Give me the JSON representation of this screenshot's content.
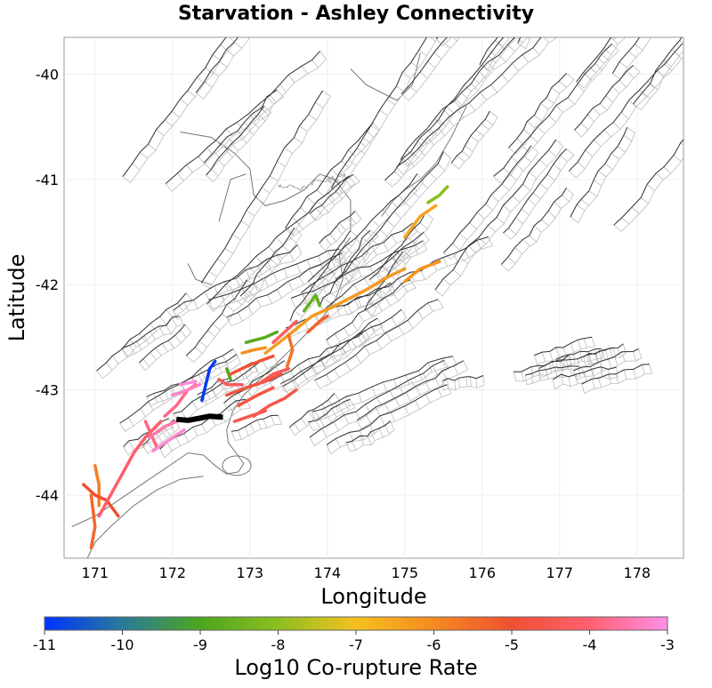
{
  "title": "Starvation - Ashley Connectivity",
  "x_axis": {
    "label": "Longitude",
    "range": [
      170.6,
      178.6
    ],
    "ticks": [
      "171",
      "172",
      "173",
      "174",
      "175",
      "176",
      "177",
      "178"
    ]
  },
  "y_axis": {
    "label": "Latitude",
    "range": [
      -44.6,
      -39.65
    ],
    "ticks": [
      "-40",
      "-41",
      "-42",
      "-43",
      "-44"
    ]
  },
  "colorbar": {
    "label": "Log10 Co-rupture Rate",
    "range": [
      -11,
      -3
    ],
    "ticks": [
      "-11",
      "-10",
      "-9",
      "-8",
      "-7",
      "-6",
      "-5",
      "-4",
      "-3"
    ],
    "stops": [
      "#0033ff",
      "#2a7a9a",
      "#4ca61e",
      "#8cbf20",
      "#f5c020",
      "#f58a20",
      "#f05030",
      "#ff6070",
      "#ff90e8"
    ]
  },
  "colors": {
    "background": "#ffffff",
    "fault_trace": "#333333",
    "fault_plane": "#bdbdbd",
    "coastline": "#777777",
    "grid": "#eeeeee",
    "source_fault": "#000000"
  },
  "chart_data": {
    "type": "map",
    "source_fault": {
      "name": "Starvation - Ashley",
      "trace": [
        [
          172.05,
          -43.28
        ],
        [
          172.2,
          -43.29
        ],
        [
          172.35,
          -43.27
        ],
        [
          172.48,
          -43.25
        ],
        [
          172.65,
          -43.26
        ]
      ]
    },
    "colored_faults": [
      {
        "log10_rate": -10.9,
        "trace": [
          [
            172.55,
            -42.73
          ],
          [
            172.48,
            -42.8
          ],
          [
            172.44,
            -42.92
          ],
          [
            172.38,
            -43.1
          ]
        ]
      },
      {
        "log10_rate": -8.9,
        "trace": [
          [
            172.7,
            -42.8
          ],
          [
            172.75,
            -42.9
          ]
        ]
      },
      {
        "log10_rate": -8.8,
        "trace": [
          [
            172.95,
            -42.55
          ],
          [
            173.2,
            -42.5
          ],
          [
            173.35,
            -42.45
          ]
        ]
      },
      {
        "log10_rate": -8.6,
        "trace": [
          [
            173.7,
            -42.25
          ],
          [
            173.85,
            -42.1
          ],
          [
            173.9,
            -42.2
          ]
        ]
      },
      {
        "log10_rate": -8.0,
        "trace": [
          [
            175.3,
            -41.22
          ],
          [
            175.45,
            -41.15
          ],
          [
            175.55,
            -41.07
          ]
        ]
      },
      {
        "log10_rate": -6.5,
        "trace": [
          [
            175.0,
            -41.55
          ],
          [
            175.2,
            -41.35
          ],
          [
            175.4,
            -41.25
          ]
        ]
      },
      {
        "log10_rate": -6.3,
        "trace": [
          [
            173.2,
            -42.65
          ],
          [
            173.5,
            -42.48
          ],
          [
            173.8,
            -42.3
          ],
          [
            174.1,
            -42.2
          ],
          [
            174.5,
            -42.05
          ],
          [
            174.8,
            -41.92
          ],
          [
            175.0,
            -41.85
          ]
        ]
      },
      {
        "log10_rate": -6.2,
        "trace": [
          [
            175.0,
            -41.97
          ],
          [
            175.2,
            -41.85
          ],
          [
            175.45,
            -41.78
          ]
        ]
      },
      {
        "log10_rate": -6.1,
        "trace": [
          [
            172.9,
            -42.65
          ],
          [
            173.05,
            -42.62
          ],
          [
            173.2,
            -42.6
          ]
        ]
      },
      {
        "log10_rate": -5.8,
        "trace": [
          [
            171.0,
            -43.72
          ],
          [
            171.05,
            -43.9
          ],
          [
            171.05,
            -44.1
          ]
        ]
      },
      {
        "log10_rate": -5.6,
        "trace": [
          [
            173.5,
            -42.48
          ],
          [
            173.55,
            -42.62
          ],
          [
            173.48,
            -42.78
          ]
        ]
      },
      {
        "log10_rate": -5.4,
        "trace": [
          [
            170.95,
            -44.0
          ],
          [
            171.0,
            -44.3
          ],
          [
            170.95,
            -44.5
          ]
        ]
      },
      {
        "log10_rate": -5.3,
        "trace": [
          [
            173.75,
            -42.45
          ],
          [
            173.9,
            -42.35
          ],
          [
            174.0,
            -42.3
          ]
        ]
      },
      {
        "log10_rate": -5.0,
        "trace": [
          [
            170.85,
            -43.9
          ],
          [
            171.0,
            -44.0
          ],
          [
            171.15,
            -44.05
          ],
          [
            171.3,
            -44.2
          ]
        ]
      },
      {
        "log10_rate": -4.9,
        "trace": [
          [
            172.75,
            -42.85
          ],
          [
            172.95,
            -42.78
          ],
          [
            173.15,
            -42.72
          ],
          [
            173.3,
            -42.68
          ]
        ]
      },
      {
        "log10_rate": -4.8,
        "trace": [
          [
            172.7,
            -43.05
          ],
          [
            172.95,
            -42.98
          ],
          [
            173.2,
            -42.92
          ],
          [
            173.4,
            -42.85
          ]
        ]
      },
      {
        "log10_rate": -4.7,
        "trace": [
          [
            172.85,
            -43.15
          ],
          [
            173.1,
            -43.05
          ],
          [
            173.3,
            -42.98
          ]
        ]
      },
      {
        "log10_rate": -4.6,
        "trace": [
          [
            173.05,
            -43.25
          ],
          [
            173.25,
            -43.15
          ],
          [
            173.45,
            -43.08
          ],
          [
            173.6,
            -43.0
          ]
        ]
      },
      {
        "log10_rate": -4.5,
        "trace": [
          [
            172.8,
            -43.3
          ],
          [
            173.0,
            -43.25
          ],
          [
            173.2,
            -43.2
          ]
        ]
      },
      {
        "log10_rate": -4.4,
        "trace": [
          [
            173.1,
            -42.95
          ],
          [
            173.3,
            -42.85
          ],
          [
            173.5,
            -42.8
          ]
        ]
      },
      {
        "log10_rate": -4.3,
        "trace": [
          [
            172.6,
            -42.9
          ],
          [
            172.7,
            -42.95
          ],
          [
            172.9,
            -42.95
          ]
        ]
      },
      {
        "log10_rate": -4.2,
        "trace": [
          [
            173.3,
            -42.55
          ],
          [
            173.45,
            -42.45
          ],
          [
            173.6,
            -42.35
          ]
        ]
      },
      {
        "log10_rate": -4.1,
        "trace": [
          [
            171.05,
            -44.2
          ],
          [
            171.2,
            -44.0
          ],
          [
            171.35,
            -43.8
          ],
          [
            171.5,
            -43.6
          ],
          [
            171.65,
            -43.45
          ],
          [
            171.85,
            -43.3
          ]
        ]
      },
      {
        "log10_rate": -3.9,
        "trace": [
          [
            171.65,
            -43.3
          ],
          [
            171.8,
            -43.55
          ]
        ]
      },
      {
        "log10_rate": -3.8,
        "trace": [
          [
            171.9,
            -43.25
          ],
          [
            172.05,
            -43.15
          ],
          [
            172.2,
            -43.0
          ],
          [
            172.3,
            -42.95
          ]
        ]
      },
      {
        "log10_rate": -3.5,
        "trace": [
          [
            171.7,
            -43.45
          ],
          [
            171.9,
            -43.35
          ],
          [
            172.05,
            -43.3
          ]
        ]
      },
      {
        "log10_rate": -3.3,
        "trace": [
          [
            172.0,
            -43.05
          ],
          [
            172.2,
            -43.0
          ],
          [
            172.35,
            -42.95
          ]
        ]
      },
      {
        "log10_rate": -3.2,
        "trace": [
          [
            171.75,
            -43.58
          ],
          [
            171.95,
            -43.48
          ],
          [
            172.15,
            -43.38
          ]
        ]
      },
      {
        "log10_rate": -3.1,
        "trace": [
          [
            172.1,
            -42.95
          ],
          [
            172.3,
            -42.92
          ]
        ]
      }
    ]
  }
}
